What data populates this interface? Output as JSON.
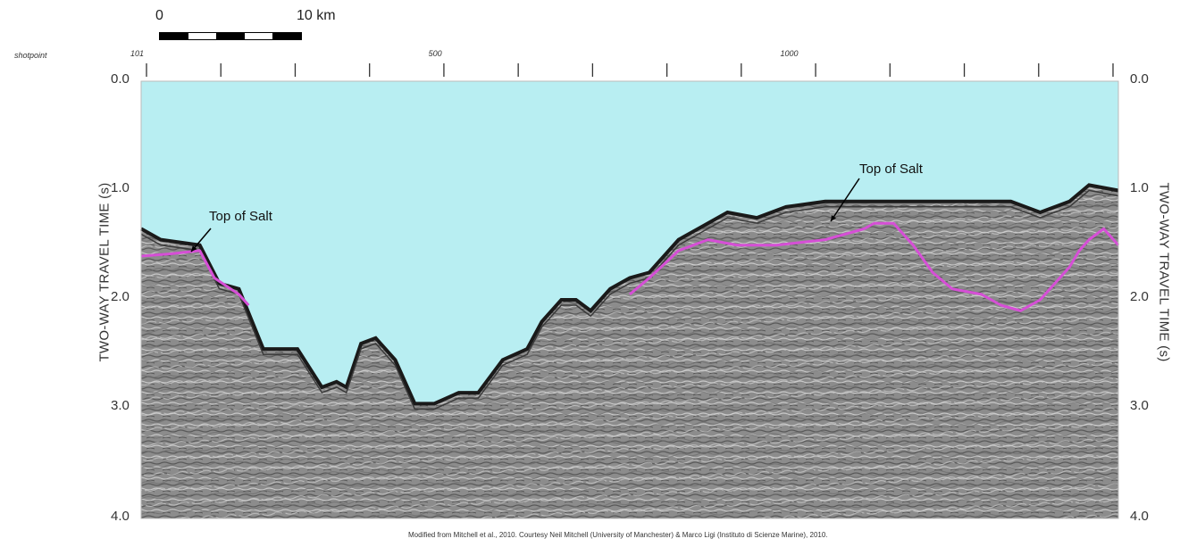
{
  "scale_bar": {
    "start_label": "0",
    "end_label": "10 km"
  },
  "shotpoint": {
    "label": "shotpoint",
    "tick_labels": [
      {
        "value": "101",
        "pos": 0.0
      },
      {
        "value": "500",
        "pos": 0.305
      },
      {
        "value": "1000",
        "pos": 0.665
      }
    ],
    "tick_count": 14
  },
  "axes": {
    "left_title": "TWO-WAY TRAVEL TIME (s)",
    "right_title": "TWO-WAY TRAVEL TIME (s)",
    "y_ticks": [
      "0.0",
      "1.0",
      "2.0",
      "3.0",
      "4.0"
    ],
    "y_range": [
      0.0,
      4.0
    ]
  },
  "annotations": [
    {
      "text": "Top of Salt",
      "id": "left"
    },
    {
      "text": "Top of Salt",
      "id": "right"
    }
  ],
  "credit": "Modified from Mitchell et al., 2010. Courtesy Neil Mitchell (University of Manchester) & Marco Ligi (Instituto di Scienze Marine), 2010.",
  "colors": {
    "water": "#b8eef2",
    "sediment": "#8e8e8e",
    "seafloor": "#1a1a1a",
    "top_of_salt": "#d64fd6"
  },
  "seafloor_profile": [
    [
      0,
      1.35
    ],
    [
      0.02,
      1.45
    ],
    [
      0.06,
      1.5
    ],
    [
      0.08,
      1.85
    ],
    [
      0.1,
      1.9
    ],
    [
      0.125,
      2.45
    ],
    [
      0.16,
      2.45
    ],
    [
      0.185,
      2.8
    ],
    [
      0.2,
      2.75
    ],
    [
      0.21,
      2.8
    ],
    [
      0.225,
      2.4
    ],
    [
      0.24,
      2.35
    ],
    [
      0.26,
      2.55
    ],
    [
      0.28,
      2.95
    ],
    [
      0.3,
      2.95
    ],
    [
      0.325,
      2.85
    ],
    [
      0.345,
      2.85
    ],
    [
      0.37,
      2.55
    ],
    [
      0.395,
      2.45
    ],
    [
      0.41,
      2.2
    ],
    [
      0.43,
      2.0
    ],
    [
      0.445,
      2.0
    ],
    [
      0.46,
      2.1
    ],
    [
      0.48,
      1.9
    ],
    [
      0.5,
      1.8
    ],
    [
      0.52,
      1.75
    ],
    [
      0.55,
      1.45
    ],
    [
      0.58,
      1.3
    ],
    [
      0.6,
      1.2
    ],
    [
      0.63,
      1.25
    ],
    [
      0.66,
      1.15
    ],
    [
      0.7,
      1.1
    ],
    [
      0.75,
      1.1
    ],
    [
      0.8,
      1.1
    ],
    [
      0.85,
      1.1
    ],
    [
      0.89,
      1.1
    ],
    [
      0.92,
      1.2
    ],
    [
      0.95,
      1.1
    ],
    [
      0.97,
      0.95
    ],
    [
      1.0,
      1.0
    ]
  ],
  "top_of_salt_left": [
    [
      0,
      1.6
    ],
    [
      0.03,
      1.58
    ],
    [
      0.06,
      1.55
    ],
    [
      0.075,
      1.8
    ],
    [
      0.1,
      1.95
    ],
    [
      0.11,
      2.05
    ]
  ],
  "top_of_salt_right": [
    [
      0.5,
      1.95
    ],
    [
      0.52,
      1.8
    ],
    [
      0.55,
      1.55
    ],
    [
      0.58,
      1.45
    ],
    [
      0.61,
      1.5
    ],
    [
      0.65,
      1.5
    ],
    [
      0.7,
      1.45
    ],
    [
      0.72,
      1.4
    ],
    [
      0.74,
      1.35
    ],
    [
      0.75,
      1.3
    ],
    [
      0.77,
      1.3
    ],
    [
      0.79,
      1.5
    ],
    [
      0.81,
      1.75
    ],
    [
      0.83,
      1.9
    ],
    [
      0.86,
      1.95
    ],
    [
      0.88,
      2.05
    ],
    [
      0.9,
      2.1
    ],
    [
      0.92,
      2.0
    ],
    [
      0.95,
      1.7
    ],
    [
      0.96,
      1.55
    ],
    [
      0.97,
      1.45
    ],
    [
      0.985,
      1.35
    ],
    [
      1.0,
      1.5
    ]
  ]
}
